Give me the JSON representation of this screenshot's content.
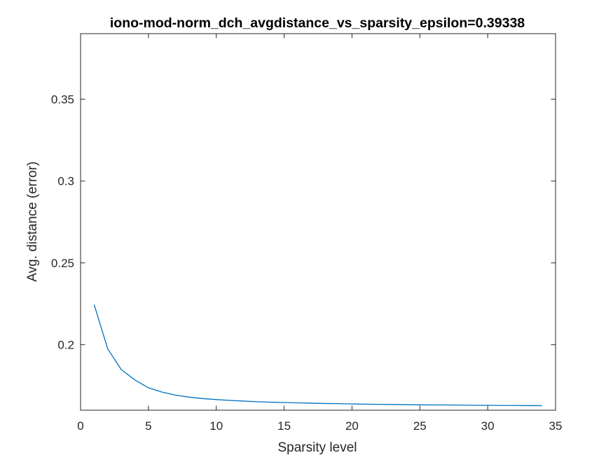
{
  "chart_data": {
    "type": "line",
    "title": "iono-mod-norm_dch_avgdistance_vs_sparsity_epsilon=0.39338",
    "xlabel": "Sparsity level",
    "ylabel": "Avg. distance (error)",
    "xlim": [
      0,
      35
    ],
    "ylim": [
      0.16,
      0.39
    ],
    "xticks": [
      0,
      5,
      10,
      15,
      20,
      25,
      30,
      35
    ],
    "yticks": [
      0.2,
      0.25,
      0.3,
      0.35
    ],
    "xtick_labels": [
      "0",
      "5",
      "10",
      "15",
      "20",
      "25",
      "30",
      "35"
    ],
    "ytick_labels": [
      "0.2",
      "0.25",
      "0.3",
      "0.35"
    ],
    "grid": false,
    "line_color": "#0072BD",
    "series": [
      {
        "x": [
          1,
          2,
          3,
          4,
          5,
          6,
          7,
          8,
          9,
          10,
          11,
          12,
          13,
          14,
          15,
          16,
          17,
          18,
          19,
          20,
          21,
          22,
          23,
          24,
          25,
          26,
          27,
          28,
          29,
          30,
          31,
          32,
          33,
          34
        ],
        "values": [
          0.2245,
          0.1975,
          0.1848,
          0.1785,
          0.1737,
          0.1711,
          0.1692,
          0.168,
          0.1671,
          0.1665,
          0.166,
          0.1656,
          0.1652,
          0.1649,
          0.1647,
          0.1645,
          0.1643,
          0.1641,
          0.164,
          0.1638,
          0.1637,
          0.1636,
          0.1635,
          0.1634,
          0.1633,
          0.1632,
          0.1632,
          0.1631,
          0.163,
          0.163,
          0.1629,
          0.1629,
          0.1628,
          0.1628
        ]
      }
    ]
  }
}
